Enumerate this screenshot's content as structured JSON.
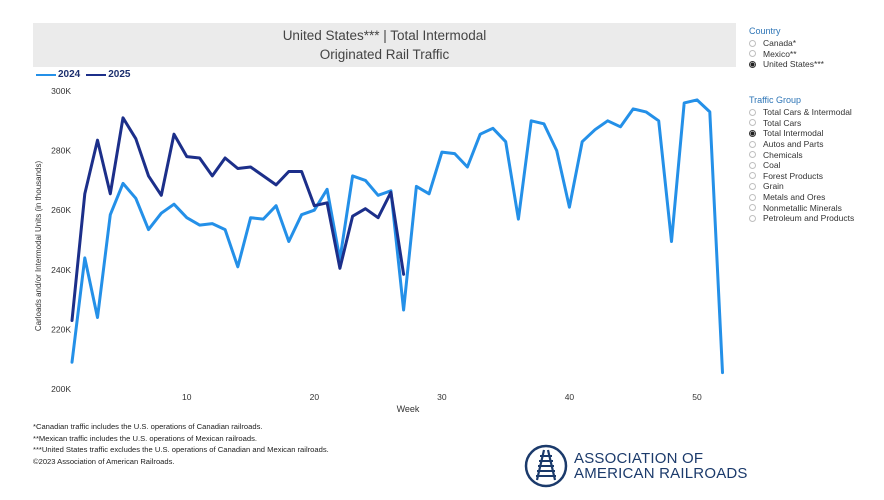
{
  "title": {
    "line1": "United States*** | Total Intermodal",
    "line2": "Originated Rail Traffic"
  },
  "legend": [
    {
      "label": "2024",
      "color": "#2490e8"
    },
    {
      "label": "2025",
      "color": "#1c2f8a"
    }
  ],
  "country_panel": {
    "title": "Country",
    "options": [
      {
        "label": "Canada*",
        "selected": false
      },
      {
        "label": "Mexico**",
        "selected": false
      },
      {
        "label": "United States***",
        "selected": true
      }
    ]
  },
  "traffic_panel": {
    "title": "Traffic Group",
    "options": [
      {
        "label": "Total Cars & Intermodal",
        "selected": false
      },
      {
        "label": "Total Cars",
        "selected": false
      },
      {
        "label": "Total Intermodal",
        "selected": true
      },
      {
        "label": "Autos and Parts",
        "selected": false
      },
      {
        "label": "Chemicals",
        "selected": false
      },
      {
        "label": "Coal",
        "selected": false
      },
      {
        "label": "Forest Products",
        "selected": false
      },
      {
        "label": "Grain",
        "selected": false
      },
      {
        "label": "Metals and Ores",
        "selected": false
      },
      {
        "label": "Nonmetallic Minerals",
        "selected": false
      },
      {
        "label": "Petroleum and Products",
        "selected": false
      }
    ]
  },
  "footnotes": [
    "*Canadian traffic includes the U.S. operations of Canadian railroads.",
    "**Mexican traffic includes the U.S. operations of Mexican railroads.",
    "***United States traffic excludes the U.S. operations of Canadian and Mexican railroads.",
    "©2023 Association of American Railroads."
  ],
  "logo": {
    "line1": "ASSOCIATION OF",
    "line2": "AMERICAN RAILROADS",
    "color": "#1b3a6b"
  },
  "chart_data": {
    "type": "line",
    "title": "United States*** | Total Intermodal Originated Rail Traffic",
    "xlabel": "Week",
    "ylabel": "Carloads and/or Intermodal Units (in thousands)",
    "xlim": [
      0.5,
      53
    ],
    "ylim": [
      200,
      300
    ],
    "x_ticks": [
      10,
      20,
      30,
      40,
      50
    ],
    "y_ticks": [
      200,
      220,
      240,
      260,
      280,
      300
    ],
    "y_tick_labels": [
      "200K",
      "220K",
      "240K",
      "260K",
      "280K",
      "300K"
    ],
    "series": [
      {
        "name": "2024",
        "color": "#2490e8",
        "x": [
          1,
          2,
          3,
          4,
          5,
          6,
          7,
          8,
          9,
          10,
          11,
          12,
          13,
          14,
          15,
          16,
          17,
          18,
          19,
          20,
          21,
          22,
          23,
          24,
          25,
          26,
          27,
          28,
          29,
          30,
          31,
          32,
          33,
          34,
          35,
          36,
          37,
          38,
          39,
          40,
          41,
          42,
          43,
          44,
          45,
          46,
          47,
          48,
          49,
          50,
          51,
          52
        ],
        "values": [
          209,
          244,
          224,
          258.5,
          269,
          264,
          253.5,
          259,
          262,
          257.5,
          255,
          255.5,
          253.5,
          241,
          257.5,
          257,
          261.5,
          249.5,
          258.5,
          260,
          267,
          243.5,
          271.5,
          270,
          265,
          266.5,
          226.5,
          268,
          265.5,
          279.5,
          279,
          274.5,
          285.5,
          287.5,
          283,
          257,
          290,
          289,
          280,
          261,
          283,
          287,
          290,
          288,
          294,
          293,
          290,
          249.5,
          296,
          297,
          293,
          205.5
        ]
      },
      {
        "name": "2025",
        "color": "#1c2f8a",
        "x": [
          1,
          2,
          3,
          4,
          5,
          6,
          7,
          8,
          9,
          10,
          11,
          12,
          13,
          14,
          15,
          16,
          17,
          18,
          19,
          20,
          21,
          22,
          23,
          24,
          25,
          26,
          27
        ],
        "values": [
          223,
          265.5,
          283.5,
          265.5,
          291,
          284,
          271.5,
          265,
          285.5,
          278,
          277.5,
          271.5,
          277.5,
          274,
          274.5,
          271.5,
          268.5,
          273,
          273,
          261.5,
          262.5,
          240.5,
          258,
          260.5,
          257.5,
          266,
          238.5
        ]
      }
    ]
  }
}
